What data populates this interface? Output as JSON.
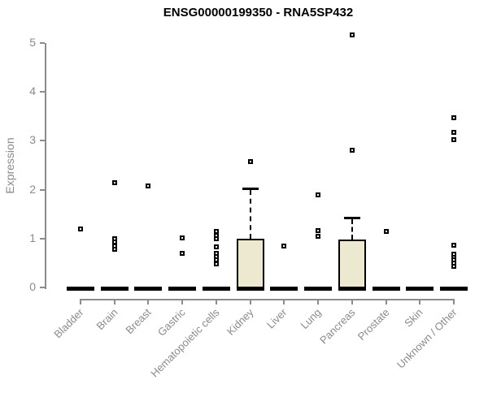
{
  "colors": {
    "axis": "#8c8c8c",
    "axis_text": "#8a8a8a",
    "box_fill": "#ede8d0",
    "box_border": "#000000",
    "marker": "#000000",
    "title": "#000000"
  },
  "chart_data": {
    "type": "boxplot",
    "title": "ENSG00000199350 - RNA5SP432",
    "xlabel": "",
    "ylabel": "Expression",
    "ylim": [
      0,
      5
    ],
    "yticks": [
      0,
      1,
      2,
      3,
      4,
      5
    ],
    "grid": false,
    "legend": false,
    "categories": [
      "Bladder",
      "Brain",
      "Breast",
      "Gastric",
      "Hematopoietic cells",
      "Kidney",
      "Liver",
      "Lung",
      "Pancreas",
      "Prostate",
      "Skin",
      "Unknown / Other"
    ],
    "series": [
      {
        "name": "Bladder",
        "median": 0,
        "q1": 0,
        "q3": 0,
        "whisker_low": 0,
        "whisker_high": 0,
        "points": [
          1.2
        ]
      },
      {
        "name": "Brain",
        "median": 0,
        "q1": 0,
        "q3": 0,
        "whisker_low": 0,
        "whisker_high": 0,
        "points": [
          2.15,
          1.0,
          0.93,
          0.85,
          0.78
        ]
      },
      {
        "name": "Breast",
        "median": 0,
        "q1": 0,
        "q3": 0,
        "whisker_low": 0,
        "whisker_high": 0,
        "points": [
          2.08
        ]
      },
      {
        "name": "Gastric",
        "median": 0,
        "q1": 0,
        "q3": 0,
        "whisker_low": 0,
        "whisker_high": 0,
        "points": [
          1.02,
          0.7
        ]
      },
      {
        "name": "Hematopoietic cells",
        "median": 0,
        "q1": 0,
        "q3": 0,
        "whisker_low": 0,
        "whisker_high": 0,
        "points": [
          1.15,
          1.07,
          1.0,
          0.83,
          0.7,
          0.63,
          0.56,
          0.49
        ]
      },
      {
        "name": "Kidney",
        "median": 0,
        "q1": 0,
        "q3": 1.0,
        "whisker_low": 0,
        "whisker_high": 2.03,
        "points": [
          2.58
        ]
      },
      {
        "name": "Liver",
        "median": 0,
        "q1": 0,
        "q3": 0,
        "whisker_low": 0,
        "whisker_high": 0,
        "points": [
          0.84
        ]
      },
      {
        "name": "Lung",
        "median": 0,
        "q1": 0,
        "q3": 0,
        "whisker_low": 0,
        "whisker_high": 0,
        "points": [
          1.9,
          1.16,
          1.05
        ]
      },
      {
        "name": "Pancreas",
        "median": 0,
        "q1": 0,
        "q3": 0.98,
        "whisker_low": 0,
        "whisker_high": 1.43,
        "points": [
          5.17,
          2.8
        ]
      },
      {
        "name": "Prostate",
        "median": 0,
        "q1": 0,
        "q3": 0,
        "whisker_low": 0,
        "whisker_high": 0,
        "points": [
          1.15
        ]
      },
      {
        "name": "Skin",
        "median": 0,
        "q1": 0,
        "q3": 0,
        "whisker_low": 0,
        "whisker_high": 0,
        "points": []
      },
      {
        "name": "Unknown / Other",
        "median": 0,
        "q1": 0,
        "q3": 0,
        "whisker_low": 0,
        "whisker_high": 0,
        "points": [
          3.48,
          3.17,
          3.02,
          0.87,
          0.68,
          0.62,
          0.56,
          0.5,
          0.44
        ]
      }
    ]
  }
}
